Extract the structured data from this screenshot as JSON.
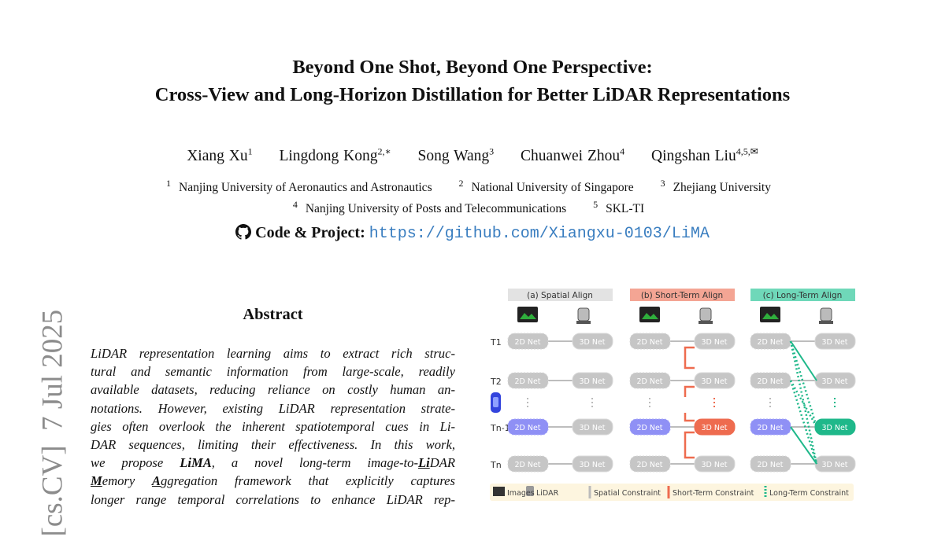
{
  "title": {
    "line1": "Beyond One Shot, Beyond One Perspective:",
    "line2": "Cross-View and Long-Horizon Distillation for Better LiDAR Representations"
  },
  "authors": [
    {
      "name": "Xiang Xu",
      "sup": "1"
    },
    {
      "name": "Lingdong Kong",
      "sup": "2,∗"
    },
    {
      "name": "Song Wang",
      "sup": "3"
    },
    {
      "name": "Chuanwei Zhou",
      "sup": "4"
    },
    {
      "name": "Qingshan Liu",
      "sup": "4,5,✉"
    }
  ],
  "affiliations": [
    {
      "sup": "1",
      "name": "Nanjing University of Aeronautics and Astronautics"
    },
    {
      "sup": "2",
      "name": "National University of Singapore"
    },
    {
      "sup": "3",
      "name": "Zhejiang University"
    },
    {
      "sup": "4",
      "name": "Nanjing University of Posts and Telecommunications"
    },
    {
      "sup": "5",
      "name": "SKL-TI"
    }
  ],
  "code": {
    "label": "Code & Project:",
    "url": "https://github.com/Xiangxu-0103/LiMA"
  },
  "arxiv_stamp": "[cs.CV]  7 Jul 2025",
  "abstract": {
    "heading": "Abstract",
    "lines": [
      "LiDAR representation learning aims to extract rich struc-",
      "tural and semantic information from large-scale, readily",
      "available datasets, reducing reliance on costly human an-",
      "notations. However, existing LiDAR representation strate-",
      "gies often overlook the inherent spatiotemporal cues in Li-",
      "DAR sequences, limiting their effectiveness. In this work,",
      "we propose |LiMA|, a novel long-term image-to-|Li|DAR",
      "|M|emory |A|ggregation framework that explicitly captures",
      "longer range temporal correlations to enhance LiDAR rep-"
    ]
  },
  "figure": {
    "panels": [
      {
        "label": "(a) Spatial Align",
        "color": "#e3e3e3",
        "accent": "#cfcfcf"
      },
      {
        "label": "(b) Short-Term Align",
        "color": "#f4a594",
        "accent": "#ee6b4f"
      },
      {
        "label": "(c) Long-Term Align",
        "color": "#6fd8b9",
        "accent": "#1fb88a"
      }
    ],
    "rows": [
      "T1",
      "T2",
      "Tn-1",
      "Tn"
    ],
    "net2d": "2D Net",
    "net3d": "3D Net",
    "highlight_2d": "#8f90f5",
    "legend": [
      "Images",
      "LiDAR",
      "Spatial Constraint",
      "Short-Term Constraint",
      "Long-Term Constraint"
    ],
    "legend_bg": "#fdf5df"
  }
}
